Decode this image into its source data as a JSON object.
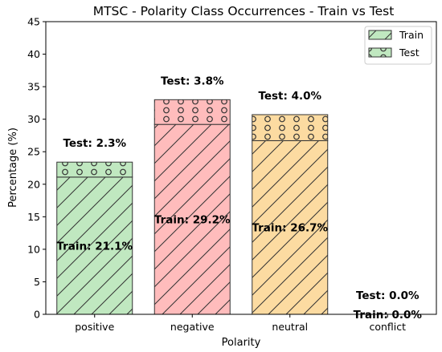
{
  "chart_data": {
    "type": "bar",
    "stacked": true,
    "title": "MTSC - Polarity Class Occurrences - Train vs Test",
    "xlabel": "Polarity",
    "ylabel": "Percentage (%)",
    "ylim": [
      0,
      45
    ],
    "yticks": [
      "0",
      "5",
      "10",
      "15",
      "20",
      "25",
      "30",
      "35",
      "40",
      "45"
    ],
    "categories": [
      "positive",
      "negative",
      "neutral",
      "conflict"
    ],
    "colors": [
      "#c0e8c0",
      "#ffbcbc",
      "#fcdba1",
      "#c0e8c0"
    ],
    "series": [
      {
        "name": "Train",
        "values": [
          21.1,
          29.2,
          26.7,
          0.0
        ],
        "labels": [
          "Train: 21.1%",
          "Train: 29.2%",
          "Train: 26.7%",
          "Train: 0.0%"
        ],
        "hatch": "diagonal"
      },
      {
        "name": "Test",
        "values": [
          2.3,
          3.8,
          4.0,
          0.0
        ],
        "labels": [
          "Test: 2.3%",
          "Test: 3.8%",
          "Test: 4.0%",
          "Test: 0.0%"
        ],
        "hatch": "circles"
      }
    ],
    "legend": {
      "position": "top-right",
      "entries": [
        "Train",
        "Test"
      ]
    },
    "grid": false
  }
}
